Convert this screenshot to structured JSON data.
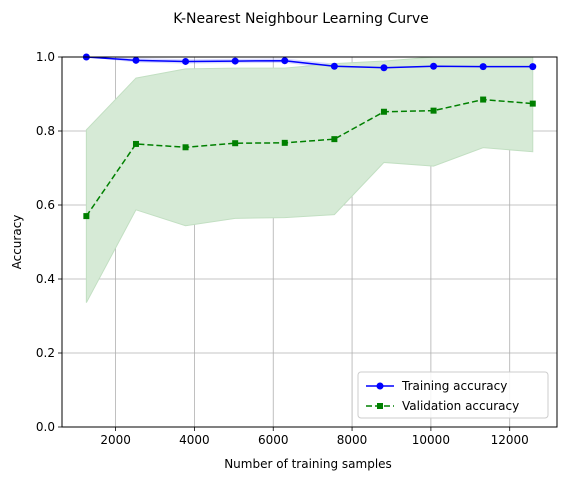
{
  "chart_data": {
    "type": "line",
    "title": "K-Nearest Neighbour Learning Curve",
    "xlabel": "Number of training samples",
    "ylabel": "Accuracy",
    "xlim": [
      640,
      13200
    ],
    "ylim": [
      0.0,
      1.0
    ],
    "xticks": [
      2000,
      4000,
      6000,
      8000,
      10000,
      12000
    ],
    "xtick_labels": [
      "2000",
      "4000",
      "6000",
      "8000",
      "10000",
      "12000"
    ],
    "yticks": [
      0.0,
      0.2,
      0.4,
      0.6,
      0.8,
      1.0
    ],
    "ytick_labels": [
      "0.0",
      "0.2",
      "0.4",
      "0.6",
      "0.8",
      "1.0"
    ],
    "grid": true,
    "legend_position": "lower-right",
    "x": [
      1258,
      2517,
      3775,
      5034,
      6292,
      7551,
      8809,
      10068,
      11326,
      12585
    ],
    "series": [
      {
        "name": "Training accuracy",
        "color": "#0000ff",
        "style": "solid",
        "marker": "circle",
        "values": [
          1.0,
          0.991,
          0.988,
          0.989,
          0.99,
          0.975,
          0.971,
          0.975,
          0.974,
          0.974
        ],
        "band_lower": [
          1.0,
          0.985,
          0.982,
          0.983,
          0.984,
          0.968,
          0.964,
          0.968,
          0.967,
          0.967
        ],
        "band_upper": [
          1.0,
          0.997,
          0.994,
          0.995,
          0.996,
          0.982,
          0.978,
          0.982,
          0.981,
          0.981
        ]
      },
      {
        "name": "Validation accuracy",
        "color": "#008000",
        "band_color": "#d6ead6",
        "style": "dashed",
        "marker": "square",
        "values": [
          0.57,
          0.765,
          0.756,
          0.767,
          0.768,
          0.778,
          0.852,
          0.855,
          0.885,
          0.874
        ],
        "band_lower": [
          0.336,
          0.587,
          0.544,
          0.564,
          0.566,
          0.574,
          0.715,
          0.705,
          0.755,
          0.744
        ],
        "band_upper": [
          0.803,
          0.943,
          0.968,
          0.97,
          0.97,
          0.982,
          0.989,
          1.0,
          1.0,
          1.0
        ]
      }
    ]
  }
}
